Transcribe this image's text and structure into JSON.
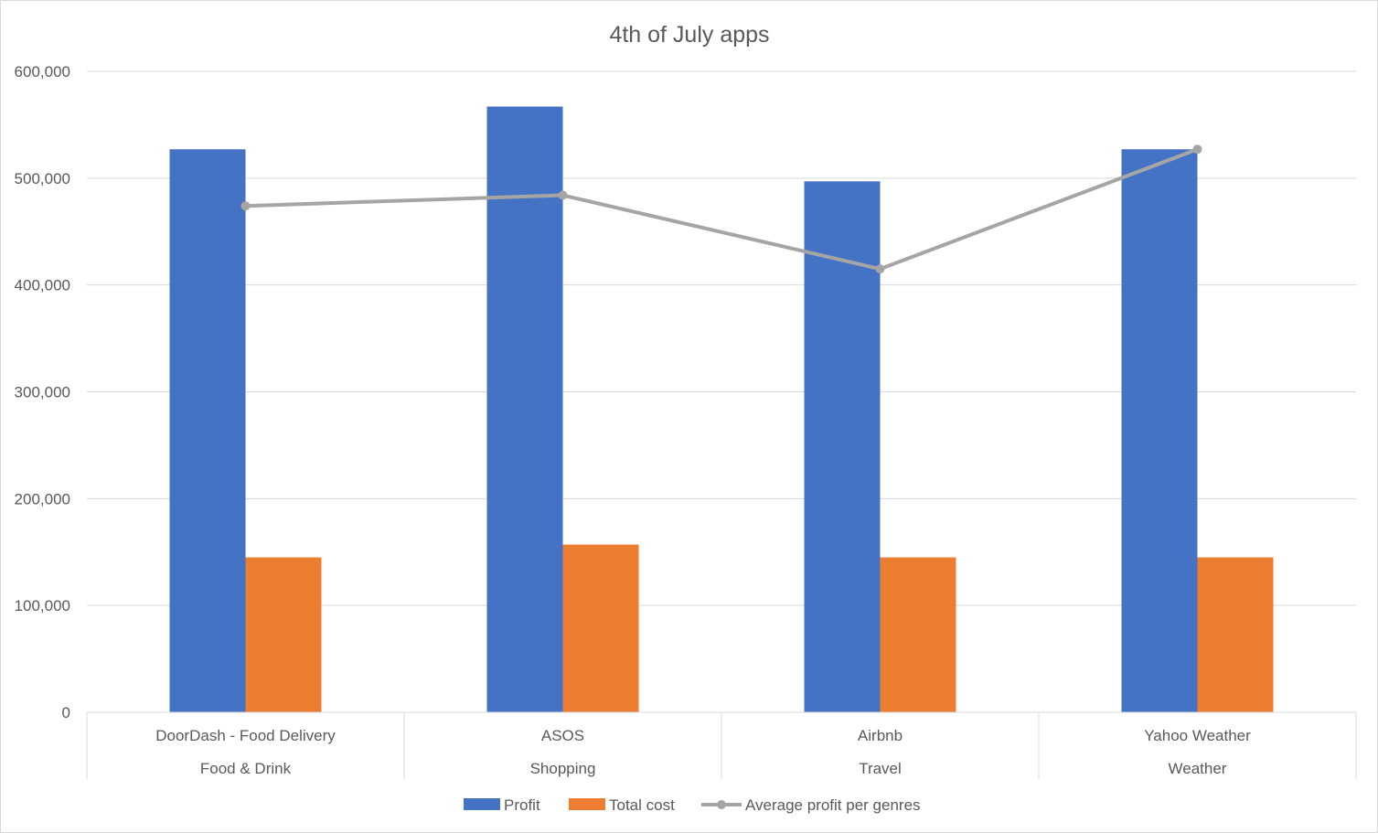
{
  "chart_data": {
    "type": "bar",
    "title": "4th of July apps",
    "categories": [
      "DoorDash - Food Delivery",
      "ASOS",
      "Airbnb",
      "Yahoo Weather"
    ],
    "category_groups": [
      "Food & Drink",
      "Shopping",
      "Travel",
      "Weather"
    ],
    "series": [
      {
        "name": "Profit",
        "type": "bar",
        "color": "#4472C4",
        "values": [
          527000,
          567000,
          497000,
          527000
        ]
      },
      {
        "name": "Total cost",
        "type": "bar",
        "color": "#ED7D31",
        "values": [
          145000,
          157000,
          145000,
          145000
        ]
      },
      {
        "name": "Average profit per genres",
        "type": "line",
        "color": "#A5A5A5",
        "values": [
          474000,
          484000,
          415000,
          527000
        ]
      }
    ],
    "ylim": [
      0,
      600000
    ],
    "yticks": [
      0,
      100000,
      200000,
      300000,
      400000,
      500000,
      600000
    ],
    "ytick_labels": [
      "0",
      "100,000",
      "200,000",
      "300,000",
      "400,000",
      "500,000",
      "600,000"
    ],
    "grid": true,
    "legend_position": "bottom"
  }
}
